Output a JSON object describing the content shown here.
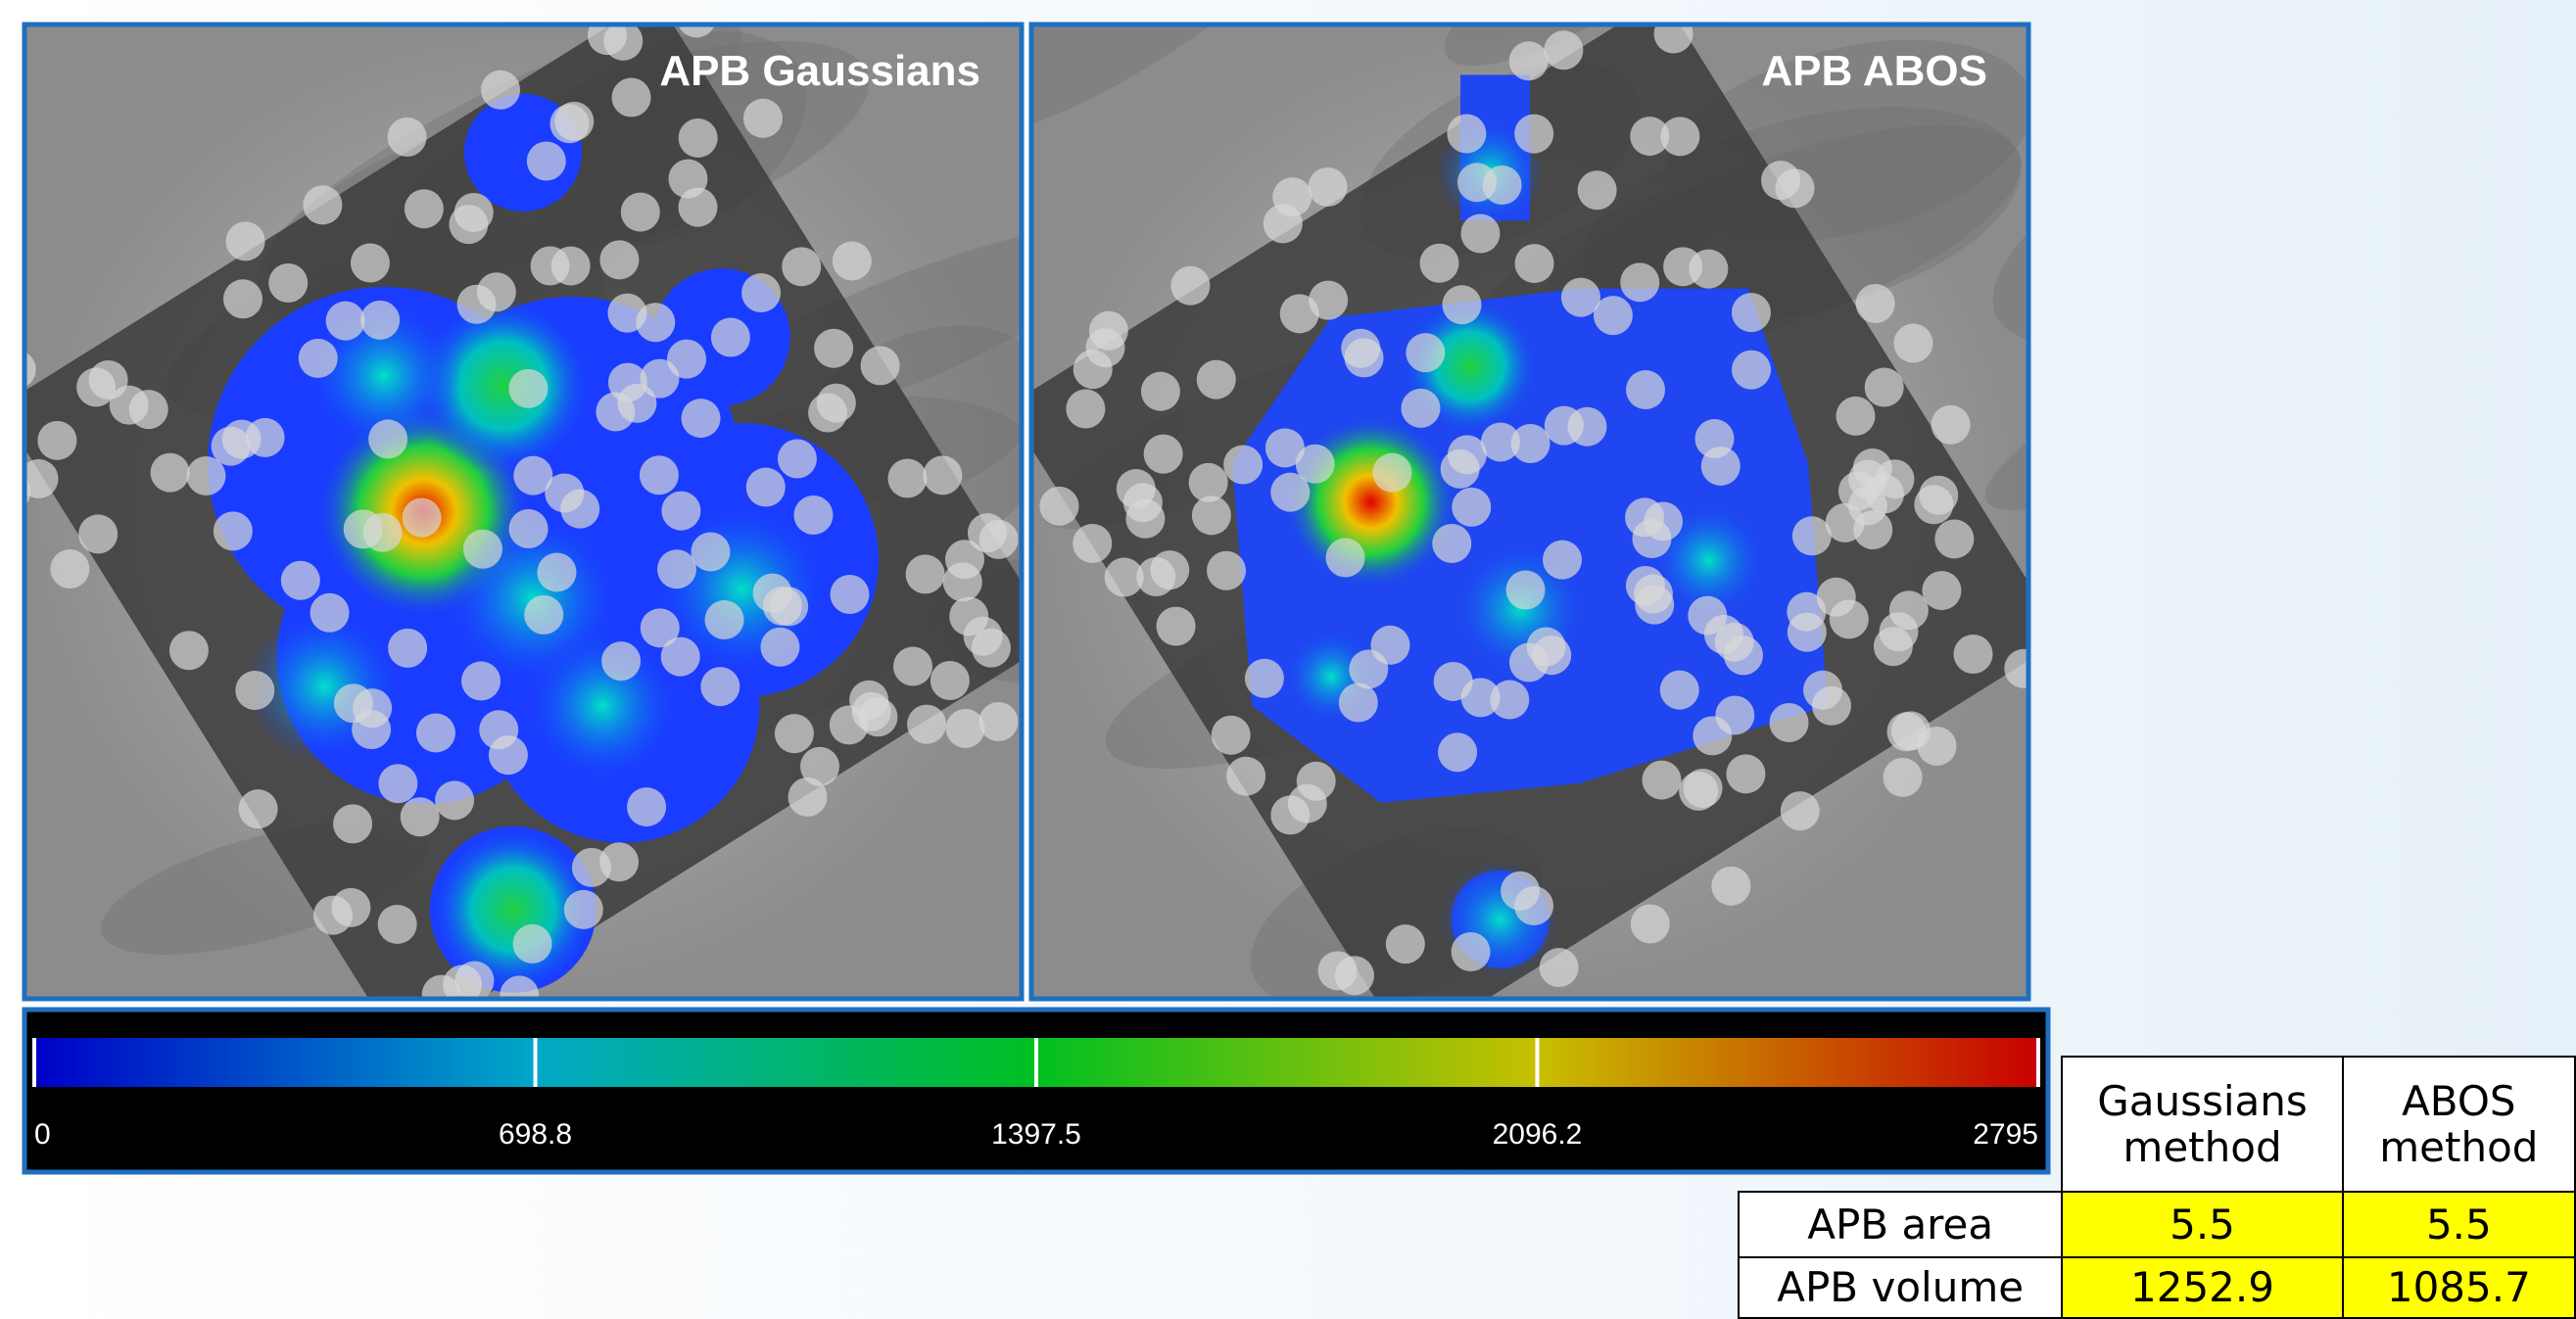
{
  "panels": [
    {
      "title": "APB Gaussians"
    },
    {
      "title": "APB ABOS"
    }
  ],
  "colorbar": {
    "range": [
      0,
      2795
    ],
    "ticks": [
      0,
      698.8,
      1397.5,
      2096.2,
      2795
    ]
  },
  "table": {
    "header": [
      "Gaussians method",
      "ABOS method"
    ],
    "rows": [
      [
        "APB area",
        5.5,
        5.5
      ],
      [
        "APB volume",
        1252.9,
        1085.7
      ]
    ]
  }
}
